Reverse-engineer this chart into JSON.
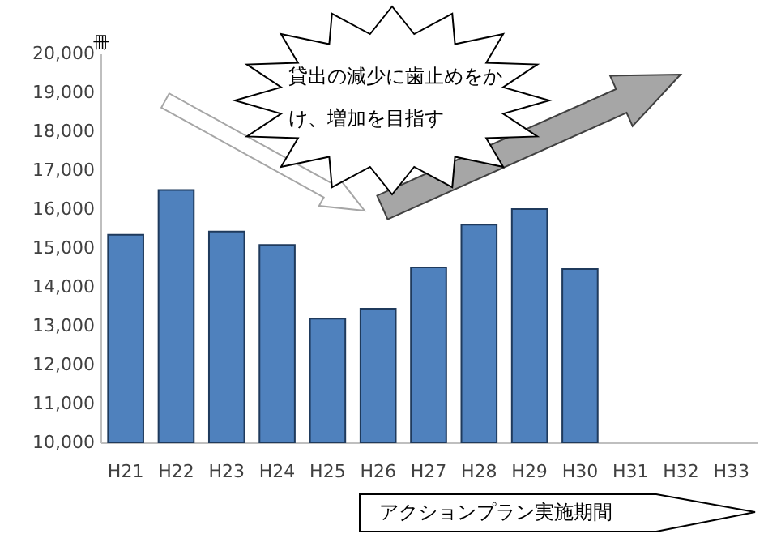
{
  "chart_data": {
    "type": "bar",
    "ylabel": "冊",
    "categories": [
      "H21",
      "H22",
      "H23",
      "H24",
      "H25",
      "H26",
      "H27",
      "H28",
      "H29",
      "H30",
      "H31",
      "H32",
      "H33"
    ],
    "values": [
      15340,
      16490,
      15420,
      15080,
      13180,
      13440,
      14500,
      15600,
      16000,
      14460,
      null,
      null,
      null
    ],
    "color": "#4f81bd",
    "ylim": [
      10000,
      20000
    ],
    "yticks": [
      {
        "value": 10000,
        "label": "10,000"
      },
      {
        "value": 11000,
        "label": "11,000"
      },
      {
        "value": 12000,
        "label": "12,000"
      },
      {
        "value": 13000,
        "label": "13,000"
      },
      {
        "value": 14000,
        "label": "14,000"
      },
      {
        "value": 15000,
        "label": "15,000"
      },
      {
        "value": 16000,
        "label": "16,000"
      },
      {
        "value": 17000,
        "label": "17,000"
      },
      {
        "value": 18000,
        "label": "18,000"
      },
      {
        "value": 19000,
        "label": "19,000"
      },
      {
        "value": 20000,
        "label": "20,000"
      }
    ],
    "grid": false,
    "annotations": [
      "貸出の減少に歯止めをかけ、増加を目指す",
      "アクションプラン実施期間"
    ]
  }
}
